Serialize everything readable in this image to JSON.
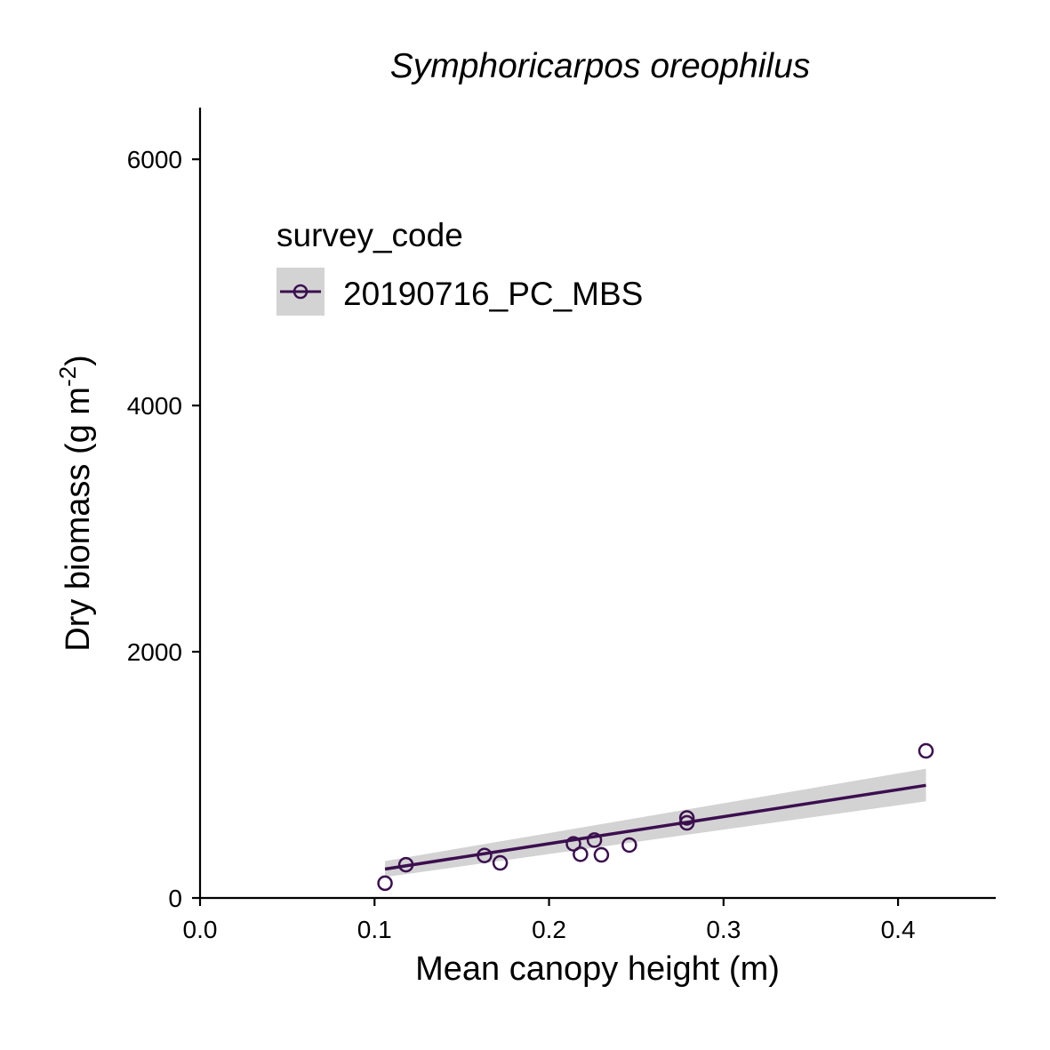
{
  "chart_data": {
    "type": "scatter",
    "title": "Symphoricarpos oreophilus",
    "xlabel": "Mean canopy height (m)",
    "ylabel_main": "Dry biomass (g m",
    "ylabel_sup": "-2",
    "ylabel_close": ")",
    "xlim": [
      0,
      0.456
    ],
    "ylim": [
      0,
      6420
    ],
    "x_ticks": [
      {
        "value": 0.0,
        "label": "0.0"
      },
      {
        "value": 0.1,
        "label": "0.1"
      },
      {
        "value": 0.2,
        "label": "0.2"
      },
      {
        "value": 0.3,
        "label": "0.3"
      },
      {
        "value": 0.4,
        "label": "0.4"
      }
    ],
    "y_ticks": [
      {
        "value": 0,
        "label": "0"
      },
      {
        "value": 2000,
        "label": "2000"
      },
      {
        "value": 4000,
        "label": "4000"
      },
      {
        "value": 6000,
        "label": "6000"
      }
    ],
    "grid": false,
    "legend": {
      "title": "survey_code",
      "placement": "top-left",
      "entries": [
        "20190716_PC_MBS"
      ]
    },
    "series": [
      {
        "name": "20190716_PC_MBS",
        "color": "#3b0f4f",
        "marker": "open-circle",
        "points": [
          {
            "x": 0.106,
            "y": 120
          },
          {
            "x": 0.118,
            "y": 270
          },
          {
            "x": 0.163,
            "y": 345
          },
          {
            "x": 0.172,
            "y": 285
          },
          {
            "x": 0.214,
            "y": 440
          },
          {
            "x": 0.218,
            "y": 355
          },
          {
            "x": 0.226,
            "y": 470
          },
          {
            "x": 0.23,
            "y": 350
          },
          {
            "x": 0.246,
            "y": 430
          },
          {
            "x": 0.279,
            "y": 650
          },
          {
            "x": 0.279,
            "y": 610
          },
          {
            "x": 0.416,
            "y": 1195
          }
        ],
        "fit": {
          "type": "linear",
          "x_range": [
            0.106,
            0.416
          ],
          "line": [
            [
              0.106,
              235
            ],
            [
              0.416,
              915
            ]
          ],
          "ci_upper": [
            [
              0.106,
              300
            ],
            [
              0.416,
              1050
            ]
          ],
          "ci_lower": [
            [
              0.106,
              170
            ],
            [
              0.416,
              785
            ]
          ],
          "ci_color": "#d3d3d3"
        }
      }
    ]
  }
}
